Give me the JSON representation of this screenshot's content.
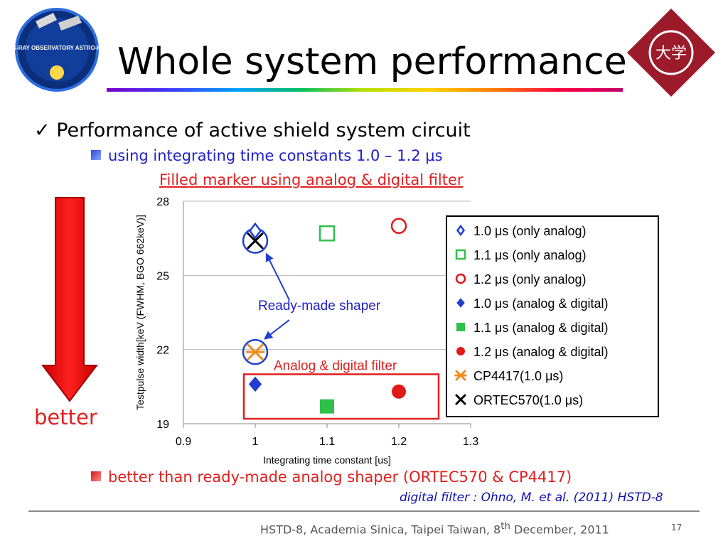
{
  "slide": {
    "title": "Whole system performance",
    "bullet_main": "Performance of active shield system circuit",
    "bullet_sub": "using integrating time constants 1.0 – 1.2 μs",
    "note_top": "Filled marker using analog & digital filter",
    "better_label": "better",
    "bullet_bottom": "better than ready-made analog shaper (ORTEC570 & CP4417)",
    "reference": "digital filter : Ohno, M. et al. (2011) HSTD-8",
    "footer": "HSTD-8, Academia Sinica, Taipei Taiwan, 8th December, 2011",
    "page_number": "17",
    "logo_left_text": "X-RAY OBSERVATORY ASTRO-H",
    "logo_right_text": "大学",
    "checkmark_glyph": "✓"
  },
  "chart_data": {
    "type": "scatter",
    "xlabel": "Integrating time constant [us]",
    "ylabel": "Testpulse width[keV (FWHM, BGO 662keV)]",
    "xlim": [
      0.9,
      1.3
    ],
    "ylim": [
      19,
      28
    ],
    "x_ticks": [
      "0.9",
      "1",
      "1.1",
      "1.2",
      "1.3"
    ],
    "y_ticks": [
      "19",
      "22",
      "25",
      "28"
    ],
    "grid": "horizontal",
    "legend_position": "right",
    "series": [
      {
        "name": "1.0 μs (only analog)",
        "marker": "diamond-open",
        "color": "#1f3fd0",
        "points": [
          {
            "x": 1.0,
            "y": 26.8
          }
        ]
      },
      {
        "name": "1.1 μs (only analog)",
        "marker": "square-open",
        "color": "#2ec04a",
        "points": [
          {
            "x": 1.1,
            "y": 26.7
          }
        ]
      },
      {
        "name": "1.2 μs (only analog)",
        "marker": "circle-open",
        "color": "#e01818",
        "points": [
          {
            "x": 1.2,
            "y": 27.0
          }
        ]
      },
      {
        "name": "1.0 μs (analog & digital)",
        "marker": "diamond-filled",
        "color": "#1f3fd0",
        "points": [
          {
            "x": 1.0,
            "y": 20.6
          }
        ]
      },
      {
        "name": "1.1 μs (analog & digital)",
        "marker": "square-filled",
        "color": "#2ec04a",
        "points": [
          {
            "x": 1.1,
            "y": 19.7
          }
        ]
      },
      {
        "name": "1.2 μs (analog & digital)",
        "marker": "circle-filled",
        "color": "#e01818",
        "points": [
          {
            "x": 1.2,
            "y": 20.3
          }
        ]
      },
      {
        "name": "CP4417(1.0 μs)",
        "marker": "asterisk",
        "color": "#f08c1e",
        "points": [
          {
            "x": 1.0,
            "y": 21.9
          }
        ]
      },
      {
        "name": "ORTEC570(1.0 μs)",
        "marker": "x",
        "color": "#000000",
        "points": [
          {
            "x": 1.0,
            "y": 26.4
          }
        ]
      }
    ],
    "annotations": [
      {
        "text": "Ready-made shaper",
        "color": "#1f20c8"
      },
      {
        "text": "Analog & digital filter",
        "color": "#e02020"
      }
    ]
  }
}
